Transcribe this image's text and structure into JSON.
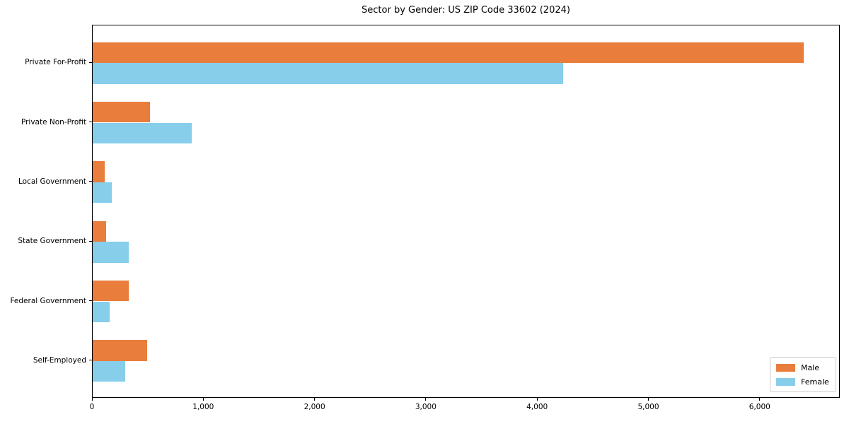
{
  "chart_data": {
    "type": "bar",
    "orientation": "horizontal",
    "title": "Sector by Gender: US ZIP Code 33602 (2024)",
    "categories": [
      "Private For-Profit",
      "Private Non-Profit",
      "Local Government",
      "State Government",
      "Federal Government",
      "Self-Employed"
    ],
    "series": [
      {
        "name": "Male",
        "color": "#e87d3c",
        "values": [
          6390,
          515,
          110,
          120,
          325,
          490
        ]
      },
      {
        "name": "Female",
        "color": "#87ceeb",
        "values": [
          4225,
          890,
          170,
          325,
          150,
          290
        ]
      }
    ],
    "xlabel": "",
    "ylabel": "",
    "xlim": [
      0,
      6720
    ],
    "x_ticks": [
      0,
      1000,
      2000,
      3000,
      4000,
      5000,
      6000
    ],
    "x_tick_labels": [
      "0",
      "1,000",
      "2,000",
      "3,000",
      "4,000",
      "5,000",
      "6,000"
    ],
    "grid": false,
    "legend": {
      "position": "lower-right",
      "entries": [
        "Male",
        "Female"
      ]
    }
  }
}
